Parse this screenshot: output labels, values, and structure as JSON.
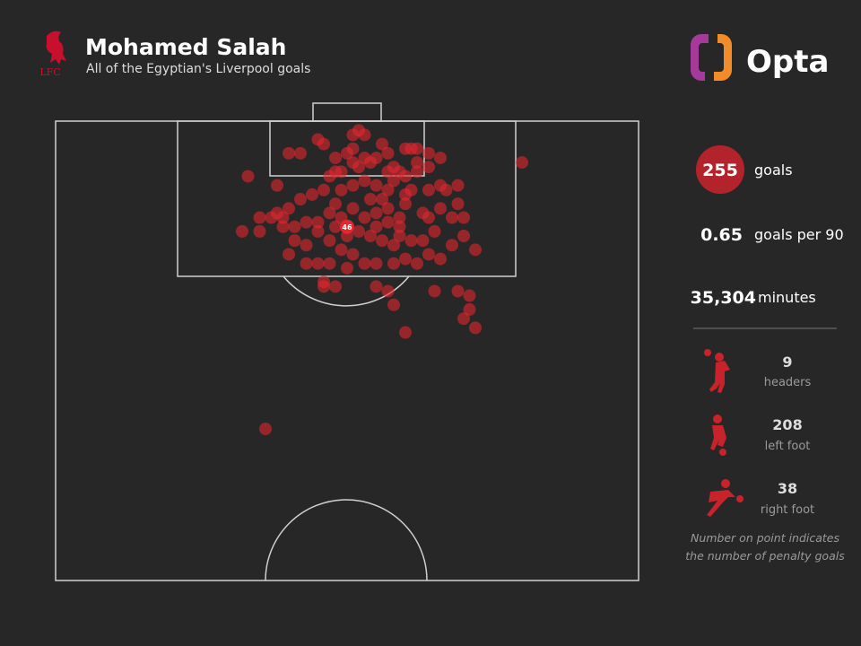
{
  "header": {
    "title": "Mohamed Salah",
    "subtitle": "All of the Egyptian's Liverpool goals",
    "club": "LFC",
    "brand": "Opta"
  },
  "chart_data": {
    "type": "scatter",
    "color": "#e3262f",
    "x": [
      33,
      80,
      36,
      60,
      72,
      70,
      71,
      71,
      69,
      65,
      58,
      57,
      55,
      48,
      46,
      46,
      50,
      47,
      45,
      43,
      40,
      32,
      35,
      35,
      37,
      38,
      39,
      40,
      42,
      44,
      46,
      38,
      48,
      46,
      45,
      40,
      42,
      48,
      50,
      51,
      51,
      52,
      53,
      56,
      57,
      60,
      61,
      62,
      64,
      66,
      64,
      62,
      59,
      57,
      54,
      53,
      51,
      49,
      47,
      49,
      51,
      53,
      55,
      57,
      60,
      61,
      64,
      66,
      67,
      69,
      66,
      69,
      70,
      68,
      70,
      72,
      68,
      66,
      64,
      62,
      60,
      58,
      55,
      53,
      51,
      49,
      47,
      45,
      43,
      41,
      39,
      41,
      43,
      45,
      47,
      48,
      49,
      51,
      53,
      55,
      57,
      59,
      60,
      63,
      64,
      65,
      63,
      61,
      59,
      58,
      56,
      54,
      52,
      50,
      48,
      55,
      57,
      59,
      54,
      56,
      58,
      60,
      62,
      52,
      55,
      58
    ],
    "y": [
      12,
      9,
      67,
      46,
      45,
      43,
      41,
      38,
      37,
      37,
      40,
      37,
      36,
      36,
      36,
      35,
      32,
      31,
      31,
      31,
      29,
      24,
      24,
      21,
      21,
      20,
      21,
      19,
      17,
      16,
      15,
      14,
      11,
      5,
      4,
      7,
      7,
      8,
      7,
      6,
      3,
      2,
      3,
      5,
      7,
      6,
      6,
      6,
      7,
      8,
      10,
      11,
      11,
      11,
      9,
      8,
      9,
      11,
      12,
      15,
      14,
      13,
      14,
      15,
      16,
      15,
      15,
      14,
      15,
      14,
      19,
      18,
      21,
      21,
      25,
      28,
      27,
      30,
      29,
      31,
      30,
      31,
      31,
      31,
      29,
      28,
      26,
      24,
      27,
      26,
      23,
      23,
      22,
      22,
      20,
      18,
      21,
      19,
      21,
      20,
      19,
      21,
      18,
      20,
      21,
      24,
      26,
      26,
      25,
      27,
      26,
      25,
      24,
      25,
      23,
      23,
      22,
      23,
      17,
      17,
      13,
      12,
      9,
      10,
      8,
      10
    ],
    "penalty": {
      "x": 50,
      "y": 23,
      "goals": 46
    }
  },
  "stats": {
    "goals": {
      "value": "255",
      "label": "goals"
    },
    "per90": {
      "value": "0.65",
      "label": "goals per 90"
    },
    "minutes": {
      "value": "35,304",
      "label": "minutes"
    },
    "breakdown": [
      {
        "value": "9",
        "label": "headers"
      },
      {
        "value": "208",
        "label": "left foot"
      },
      {
        "value": "38",
        "label": "right foot"
      }
    ],
    "note": [
      "Number on point indicates",
      "the number of penalty goals"
    ]
  }
}
